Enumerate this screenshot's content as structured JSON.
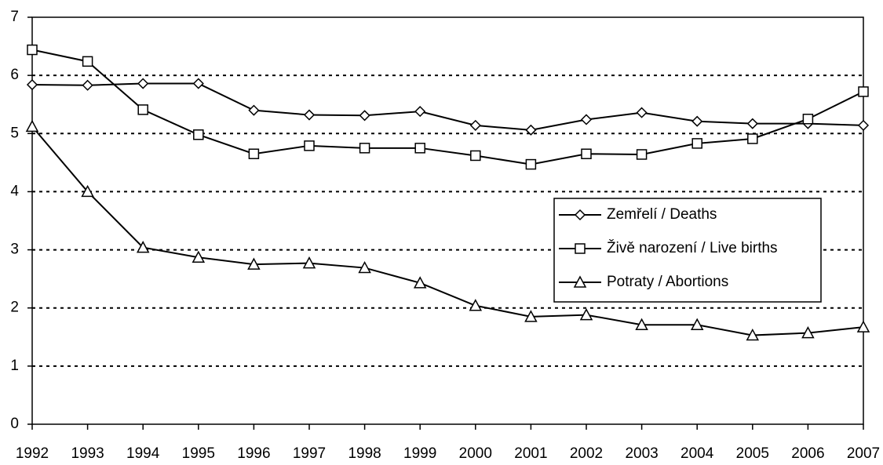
{
  "chart_data": {
    "type": "line",
    "x": [
      1992,
      1993,
      1994,
      1995,
      1996,
      1997,
      1998,
      1999,
      2000,
      2001,
      2002,
      2003,
      2004,
      2005,
      2006,
      2007
    ],
    "xlim": [
      1992,
      2007
    ],
    "xticks": [
      1992,
      1993,
      1994,
      1995,
      1996,
      1997,
      1998,
      1999,
      2000,
      2001,
      2002,
      2003,
      2004,
      2005,
      2006,
      2007
    ],
    "ylim": [
      0,
      7
    ],
    "yticks": [
      0,
      1,
      2,
      3,
      4,
      5,
      6,
      7
    ],
    "grid": true,
    "legend_position": "center-right",
    "series": [
      {
        "name": "Zemřelí / Deaths",
        "color": "#000000",
        "marker": "diamond",
        "values": [
          5.84,
          5.83,
          5.86,
          5.86,
          5.4,
          5.32,
          5.31,
          5.38,
          5.14,
          5.06,
          5.24,
          5.36,
          5.21,
          5.17,
          5.17,
          5.14
        ]
      },
      {
        "name": "Živě narození / Live births",
        "color": "#000000",
        "marker": "square",
        "values": [
          6.44,
          6.24,
          5.41,
          4.98,
          4.65,
          4.79,
          4.75,
          4.75,
          4.62,
          4.47,
          4.65,
          4.64,
          4.83,
          4.91,
          5.25,
          5.72
        ]
      },
      {
        "name": "Potraty / Abortions",
        "color": "#000000",
        "marker": "triangle",
        "values": [
          5.12,
          4.0,
          3.04,
          2.87,
          2.75,
          2.77,
          2.69,
          2.43,
          2.04,
          1.85,
          1.88,
          1.71,
          1.71,
          1.53,
          1.57,
          1.67
        ]
      }
    ]
  }
}
